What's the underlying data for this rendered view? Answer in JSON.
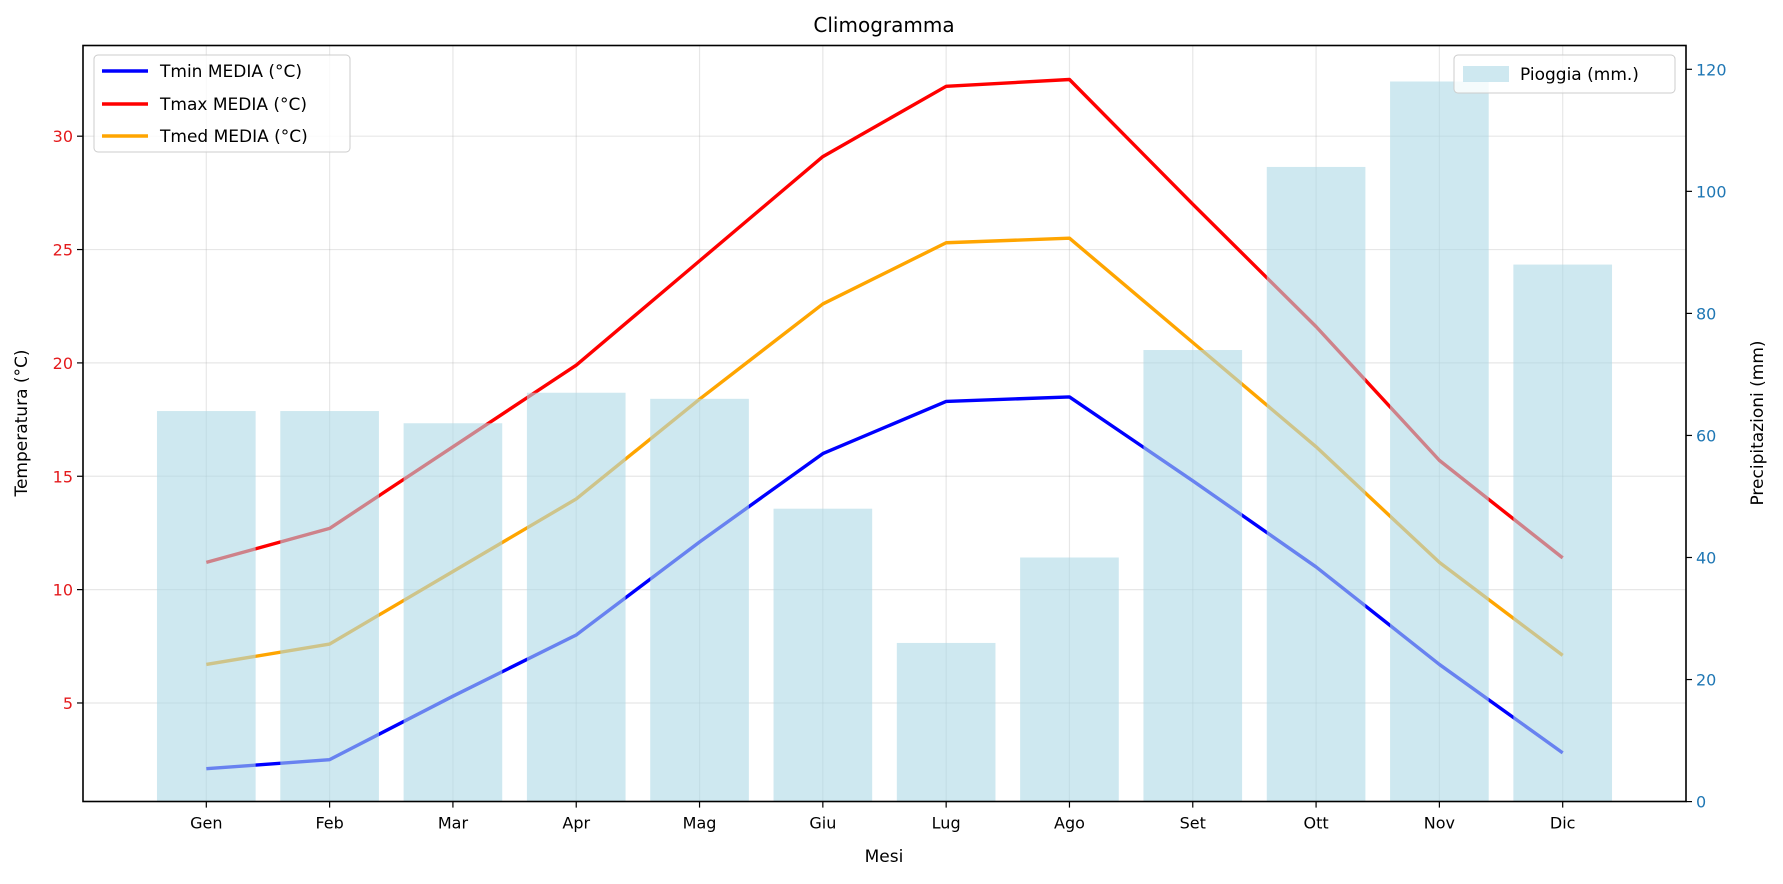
{
  "chart_data": {
    "type": "bar+line",
    "title": "Climogramma",
    "xlabel": "Mesi",
    "ylabel_left": "Temperatura (°C)",
    "ylabel_right": "Precipitazioni (mm)",
    "categories": [
      "Gen",
      "Feb",
      "Mar",
      "Apr",
      "Mag",
      "Giu",
      "Lug",
      "Ago",
      "Set",
      "Ott",
      "Nov",
      "Dic"
    ],
    "ylim_left": [
      0.65,
      34.0
    ],
    "ylim_right": [
      0,
      123.9
    ],
    "yticks_left": [
      5,
      10,
      15,
      20,
      25,
      30
    ],
    "yticks_right": [
      0,
      20,
      40,
      60,
      80,
      100,
      120
    ],
    "grid": true,
    "line_series": [
      {
        "name": "Tmin MEDIA (°C)",
        "color": "#0000ff",
        "values": [
          2.1,
          2.5,
          5.3,
          8.0,
          12.1,
          16.0,
          18.3,
          18.5,
          14.8,
          11.0,
          6.7,
          2.8
        ]
      },
      {
        "name": "Tmax MEDIA (°C)",
        "color": "#ff0000",
        "values": [
          11.2,
          12.7,
          16.3,
          19.9,
          24.5,
          29.1,
          32.2,
          32.5,
          27.0,
          21.6,
          15.7,
          11.4
        ]
      },
      {
        "name": "Tmed MEDIA (°C)",
        "color": "#ffa500",
        "values": [
          6.7,
          7.6,
          10.8,
          14.0,
          18.4,
          22.6,
          25.3,
          25.5,
          20.9,
          16.3,
          11.2,
          7.1
        ]
      }
    ],
    "bar_series": {
      "name": "Pioggia (mm.)",
      "color": "#add8e6",
      "values": [
        64,
        64,
        62,
        67,
        66,
        48,
        26,
        40,
        74,
        104,
        118,
        88
      ],
      "axis": "right"
    },
    "legend_left_placement": "upper-left",
    "legend_right_placement": "upper-right",
    "left_tick_color": "#e41a1c",
    "right_tick_color": "#1f77b4"
  }
}
